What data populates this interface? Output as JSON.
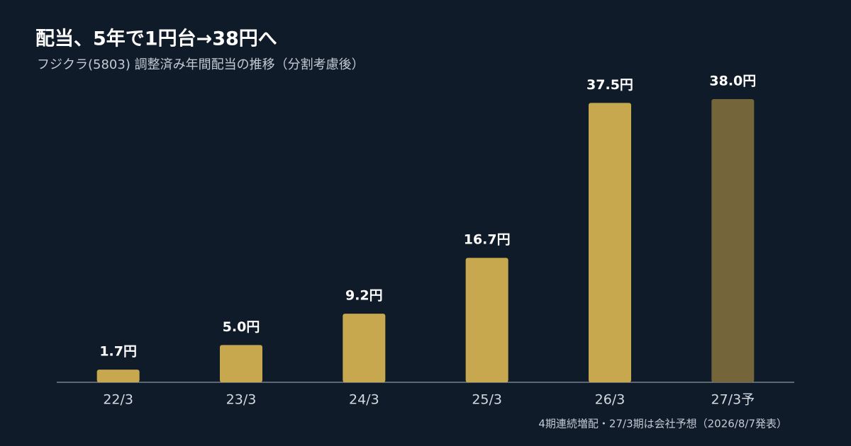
{
  "chart_data": {
    "type": "bar",
    "title": "配当、5年で1円台→38円へ",
    "subtitle": "フジクラ(5803) 調整済み年間配当の推移（分割考慮後）",
    "categories": [
      "22/3",
      "23/3",
      "24/3",
      "25/3",
      "26/3",
      "27/3予"
    ],
    "values": [
      1.7,
      5.0,
      9.2,
      16.7,
      37.5,
      38.0
    ],
    "value_labels": [
      "1.7円",
      "5.0円",
      "9.2円",
      "16.7円",
      "37.5円",
      "38.0円"
    ],
    "colors": [
      "#c8a84e",
      "#c8a84e",
      "#c8a84e",
      "#c8a84e",
      "#c8a84e",
      "#74653a"
    ],
    "ylim": [
      0,
      40
    ],
    "note": "4期連続増配・27/3期は会社予想（2026/8/7発表）"
  }
}
